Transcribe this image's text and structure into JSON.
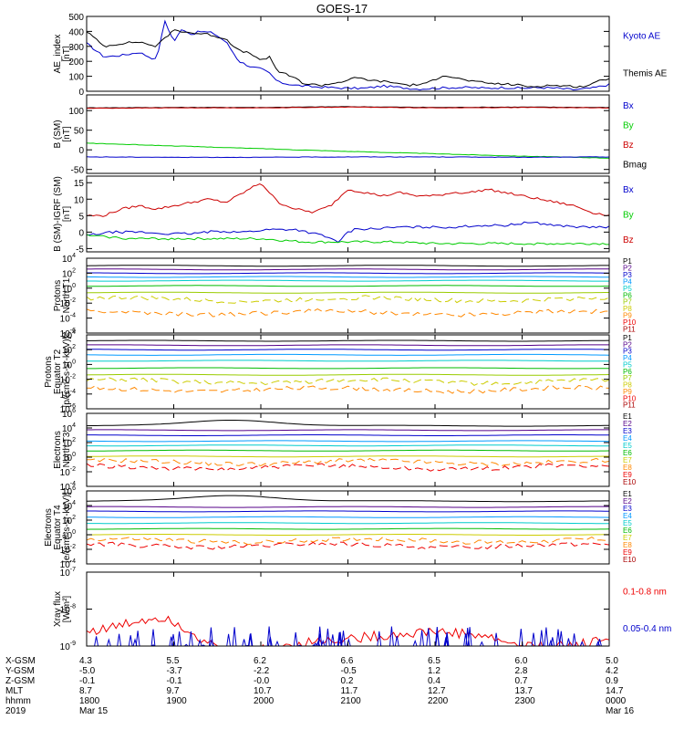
{
  "chart_data": {
    "title": "GOES-17",
    "panels": [
      {
        "id": "ae",
        "type": "line",
        "ylabel": [
          "AE_index",
          "[nT]"
        ],
        "ylim": [
          0,
          500
        ],
        "log": false,
        "yticks": [
          0,
          100,
          200,
          300,
          400,
          500
        ],
        "legend": [
          {
            "name": "Kyoto AE",
            "color": "#0000cc"
          },
          {
            "name": "Themis AE",
            "color": "#000000"
          }
        ],
        "series": [
          {
            "name": "Kyoto AE",
            "color": "#0000cc",
            "x": [
              0,
              0.2,
              0.4,
              0.6,
              0.8,
              0.9,
              1.0,
              1.1,
              1.2,
              1.3,
              1.45,
              1.6,
              1.75,
              1.9,
              2.0,
              2.1,
              2.2,
              2.4,
              2.6,
              2.8,
              3.0,
              3.2,
              3.4,
              3.6,
              3.8,
              4.0,
              4.2,
              4.4,
              4.6,
              4.8,
              5.0,
              5.2,
              5.4,
              5.6,
              5.8,
              6.0
            ],
            "y": [
              320,
              230,
              240,
              260,
              210,
              470,
              330,
              420,
              380,
              400,
              390,
              330,
              200,
              160,
              150,
              120,
              60,
              40,
              30,
              25,
              20,
              20,
              35,
              25,
              15,
              20,
              25,
              25,
              20,
              25,
              20,
              25,
              20,
              10,
              20,
              45
            ]
          },
          {
            "name": "Themis AE",
            "color": "#000000",
            "x": [
              0,
              0.2,
              0.4,
              0.6,
              0.8,
              1.0,
              1.2,
              1.4,
              1.6,
              1.75,
              1.9,
              2.0,
              2.1,
              2.2,
              2.35,
              2.5,
              2.7,
              2.9,
              3.1,
              3.3,
              3.5,
              3.7,
              3.9,
              4.1,
              4.3,
              4.5,
              4.7,
              4.9,
              5.1,
              5.3,
              5.5,
              5.7,
              5.9,
              6.0
            ],
            "y": [
              400,
              300,
              320,
              330,
              300,
              410,
              390,
              380,
              350,
              270,
              250,
              200,
              230,
              130,
              100,
              50,
              40,
              60,
              90,
              70,
              60,
              40,
              50,
              110,
              80,
              60,
              50,
              45,
              30,
              40,
              35,
              30,
              70,
              90
            ]
          }
        ]
      },
      {
        "id": "bsm",
        "type": "line",
        "ylabel": [
          "B (SM)",
          "[nT]"
        ],
        "ylim": [
          -60,
          140
        ],
        "log": false,
        "yticks": [
          -50,
          0,
          50,
          100
        ],
        "legend": [
          {
            "name": "Bx",
            "color": "#0000cc"
          },
          {
            "name": "By",
            "color": "#00cc00"
          },
          {
            "name": "Bz",
            "color": "#cc0000"
          },
          {
            "name": "Bmag",
            "color": "#000000"
          }
        ],
        "series": [
          {
            "name": "Bmag",
            "color": "#000000",
            "x": [
              0,
              1,
              2,
              3,
              4,
              5,
              6
            ],
            "y": [
              107,
              108,
              108,
              110,
              108,
              109,
              108
            ]
          },
          {
            "name": "Bz",
            "color": "#cc0000",
            "x": [
              0,
              1,
              2,
              3,
              4,
              5,
              6
            ],
            "y": [
              106,
              107,
              107,
              109,
              107,
              108,
              107
            ]
          },
          {
            "name": "By",
            "color": "#00cc00",
            "x": [
              0,
              1,
              2,
              3,
              4,
              5,
              6
            ],
            "y": [
              17,
              10,
              3,
              -4,
              -10,
              -16,
              -21
            ]
          },
          {
            "name": "Bx",
            "color": "#0000cc",
            "x": [
              0,
              1,
              2,
              3,
              4,
              5,
              6
            ],
            "y": [
              -18,
              -19,
              -19,
              -18,
              -18,
              -19,
              -18
            ]
          }
        ]
      },
      {
        "id": "bigrf",
        "type": "line",
        "ylabel": [
          "B (SM)-IGRF (SM)",
          "[nT]"
        ],
        "ylim": [
          -6,
          17
        ],
        "log": false,
        "yticks": [
          -5,
          0,
          5,
          10,
          15
        ],
        "legend": [
          {
            "name": "Bx",
            "color": "#0000cc"
          },
          {
            "name": "By",
            "color": "#00cc00"
          },
          {
            "name": "Bz",
            "color": "#cc0000"
          }
        ],
        "series": [
          {
            "name": "Bz",
            "color": "#cc0000",
            "x": [
              0,
              0.2,
              0.4,
              0.6,
              0.8,
              1.0,
              1.2,
              1.4,
              1.6,
              1.8,
              2.0,
              2.1,
              2.2,
              2.4,
              2.6,
              2.8,
              3.0,
              3.2,
              3.4,
              3.6,
              3.8,
              4.0,
              4.2,
              4.4,
              4.6,
              4.8,
              5.0,
              5.2,
              5.4,
              5.6,
              5.8,
              6.0
            ],
            "y": [
              5,
              5,
              7,
              8,
              7,
              8,
              9,
              10,
              9,
              12,
              15,
              12,
              9,
              7,
              6,
              8,
              13,
              12,
              11,
              12,
              11,
              11,
              12,
              12,
              13,
              12,
              11,
              10,
              9,
              8,
              6,
              5
            ]
          },
          {
            "name": "Bx",
            "color": "#0000cc",
            "x": [
              0,
              0.3,
              0.6,
              0.9,
              1.2,
              1.5,
              1.8,
              2.1,
              2.4,
              2.7,
              2.9,
              3.0,
              3.1,
              3.3,
              3.6,
              3.9,
              4.2,
              4.5,
              4.8,
              5.1,
              5.4,
              5.7,
              6.0
            ],
            "y": [
              -1,
              0,
              0,
              -0.5,
              -0.5,
              0.3,
              0,
              0.8,
              0.8,
              -1,
              -3,
              0,
              1,
              1,
              1.5,
              1.5,
              1.5,
              2,
              2,
              3,
              2,
              1.5,
              1.5
            ]
          },
          {
            "name": "By",
            "color": "#00cc00",
            "x": [
              0,
              0.5,
              1.0,
              1.5,
              2.0,
              2.5,
              3.0,
              3.5,
              4.0,
              4.5,
              5.0,
              5.5,
              6.0
            ],
            "y": [
              -1,
              -2,
              -2,
              -2,
              -2,
              -3,
              -3,
              -3,
              -3.5,
              -3.5,
              -3.5,
              -3.5,
              -3.5
            ]
          }
        ]
      },
      {
        "id": "pt1",
        "type": "line",
        "ylabel": [
          "Protons",
          "North T1"
        ],
        "log": true,
        "ylim_exp": [
          -6,
          4
        ],
        "ytick_exps": [
          4,
          2,
          0,
          -2,
          -4,
          -6
        ],
        "legend": [
          {
            "name": "P1",
            "color": "#000000"
          },
          {
            "name": "P2",
            "color": "#550088"
          },
          {
            "name": "P3",
            "color": "#0000cc"
          },
          {
            "name": "P4",
            "color": "#0099ff"
          },
          {
            "name": "P5",
            "color": "#00cccc"
          },
          {
            "name": "P6",
            "color": "#00bb00"
          },
          {
            "name": "P7",
            "color": "#99cc00"
          },
          {
            "name": "P8",
            "color": "#cccc00"
          },
          {
            "name": "P9",
            "color": "#ff8800"
          },
          {
            "name": "P10",
            "color": "#ee0000"
          },
          {
            "name": "P11",
            "color": "#aa0000"
          }
        ],
        "levels_exp": [
          3.0,
          2.5,
          2.0,
          1.5,
          1.0,
          0.3,
          -0.6,
          -1.5,
          -3.3
        ]
      },
      {
        "id": "pt2",
        "type": "line",
        "ylabel": [
          "Protons",
          "Equator T2",
          "[p/(cm²-s-sr-keV)]"
        ],
        "log": true,
        "ylim_exp": [
          -6,
          4
        ],
        "ytick_exps": [
          4,
          2,
          0,
          -2,
          -4,
          -6
        ],
        "legend": [
          {
            "name": "P1",
            "color": "#000000"
          },
          {
            "name": "P2",
            "color": "#550088"
          },
          {
            "name": "P3",
            "color": "#0000cc"
          },
          {
            "name": "P4",
            "color": "#0099ff"
          },
          {
            "name": "P5",
            "color": "#00cccc"
          },
          {
            "name": "P6",
            "color": "#00bb00"
          },
          {
            "name": "P7",
            "color": "#99cc00"
          },
          {
            "name": "P8",
            "color": "#cccc00"
          },
          {
            "name": "P9",
            "color": "#ff8800"
          },
          {
            "name": "P10",
            "color": "#ee0000"
          },
          {
            "name": "P11",
            "color": "#aa0000"
          }
        ],
        "levels_exp": [
          3.2,
          2.6,
          2.0,
          1.3,
          0.5,
          -0.5,
          -1.4,
          -2.3,
          -3.4
        ]
      },
      {
        "id": "et3",
        "type": "line",
        "ylabel": [
          "Electrons",
          "North T3"
        ],
        "log": true,
        "ylim_exp": [
          -4,
          6
        ],
        "ytick_exps": [
          6,
          4,
          2,
          0,
          -2,
          -4
        ],
        "legend": [
          {
            "name": "E1",
            "color": "#000000"
          },
          {
            "name": "E2",
            "color": "#550088"
          },
          {
            "name": "E3",
            "color": "#0000cc"
          },
          {
            "name": "E4",
            "color": "#0099ff"
          },
          {
            "name": "E5",
            "color": "#00cccc"
          },
          {
            "name": "E6",
            "color": "#00bb00"
          },
          {
            "name": "E7",
            "color": "#cccc00"
          },
          {
            "name": "E8",
            "color": "#ff8800"
          },
          {
            "name": "E9",
            "color": "#ee0000"
          },
          {
            "name": "E10",
            "color": "#aa0000"
          }
        ],
        "levels_exp": [
          4.3,
          3.7,
          3.0,
          2.2,
          1.6,
          0.9,
          0.1,
          -0.7,
          -1.4
        ]
      },
      {
        "id": "et4",
        "type": "line",
        "ylabel": [
          "Electrons",
          "Equator T4",
          "[e/(cm²-s-sr-keV)]"
        ],
        "log": true,
        "ylim_exp": [
          -4,
          6
        ],
        "ytick_exps": [
          6,
          4,
          2,
          0,
          -2,
          -4
        ],
        "legend": [
          {
            "name": "E1",
            "color": "#000000"
          },
          {
            "name": "E2",
            "color": "#550088"
          },
          {
            "name": "E3",
            "color": "#0000cc"
          },
          {
            "name": "E4",
            "color": "#0099ff"
          },
          {
            "name": "E5",
            "color": "#00cccc"
          },
          {
            "name": "E6",
            "color": "#00bb00"
          },
          {
            "name": "E7",
            "color": "#cccc00"
          },
          {
            "name": "E8",
            "color": "#ff8800"
          },
          {
            "name": "E9",
            "color": "#ee0000"
          },
          {
            "name": "E10",
            "color": "#aa0000"
          }
        ],
        "levels_exp": [
          4.6,
          3.8,
          3.2,
          2.4,
          1.6,
          0.8,
          0.0,
          -0.8,
          -1.5
        ]
      },
      {
        "id": "xray",
        "type": "line",
        "ylabel": [
          "Xray flux",
          "[W/m²]"
        ],
        "log": true,
        "ylim_exp": [
          -9,
          -7
        ],
        "ytick_exps": [
          -7,
          -8,
          -9
        ],
        "legend": [
          {
            "name": "0.1-0.8 nm",
            "color": "#ee0000"
          },
          {
            "name": "0.05-0.4 nm",
            "color": "#0000cc"
          }
        ],
        "series": [
          {
            "name": "0.1-0.8 nm",
            "color": "#ee0000",
            "x": [
              0,
              0.3,
              0.6,
              0.9,
              1.2,
              1.5,
              1.8,
              2.0,
              2.5,
              3.0,
              3.5,
              4.0,
              4.5,
              5.0,
              5.5,
              6.0
            ],
            "y": [
              -8.6,
              -8.5,
              -8.3,
              -8.2,
              -8.6,
              -9.1,
              -9.2,
              -9.1,
              -8.9,
              -8.8,
              -8.7,
              -8.6,
              -8.7,
              -9.0,
              -9.0,
              -8.8
            ]
          }
        ]
      }
    ],
    "x_rows": [
      {
        "label": "X-GSM",
        "values": [
          "4.3",
          "5.5",
          "6.2",
          "6.6",
          "6.5",
          "6.0",
          "5.0"
        ]
      },
      {
        "label": "Y-GSM",
        "values": [
          "-5.0",
          "-3.7",
          "-2.2",
          "-0.5",
          "1.2",
          "2.8",
          "4.2"
        ]
      },
      {
        "label": "Z-GSM",
        "values": [
          "-0.1",
          "-0.1",
          "-0.0",
          "0.2",
          "0.4",
          "0.7",
          "0.9"
        ]
      },
      {
        "label": "MLT",
        "values": [
          "8.7",
          "9.7",
          "10.7",
          "11.7",
          "12.7",
          "13.7",
          "14.7"
        ]
      },
      {
        "label": "hhmm",
        "values": [
          "1800",
          "1900",
          "2000",
          "2100",
          "2200",
          "2300",
          "0000"
        ]
      },
      {
        "label": "2019",
        "values": [
          "Mar 15",
          "",
          "",
          "",
          "",
          "",
          "Mar 16"
        ]
      }
    ]
  }
}
